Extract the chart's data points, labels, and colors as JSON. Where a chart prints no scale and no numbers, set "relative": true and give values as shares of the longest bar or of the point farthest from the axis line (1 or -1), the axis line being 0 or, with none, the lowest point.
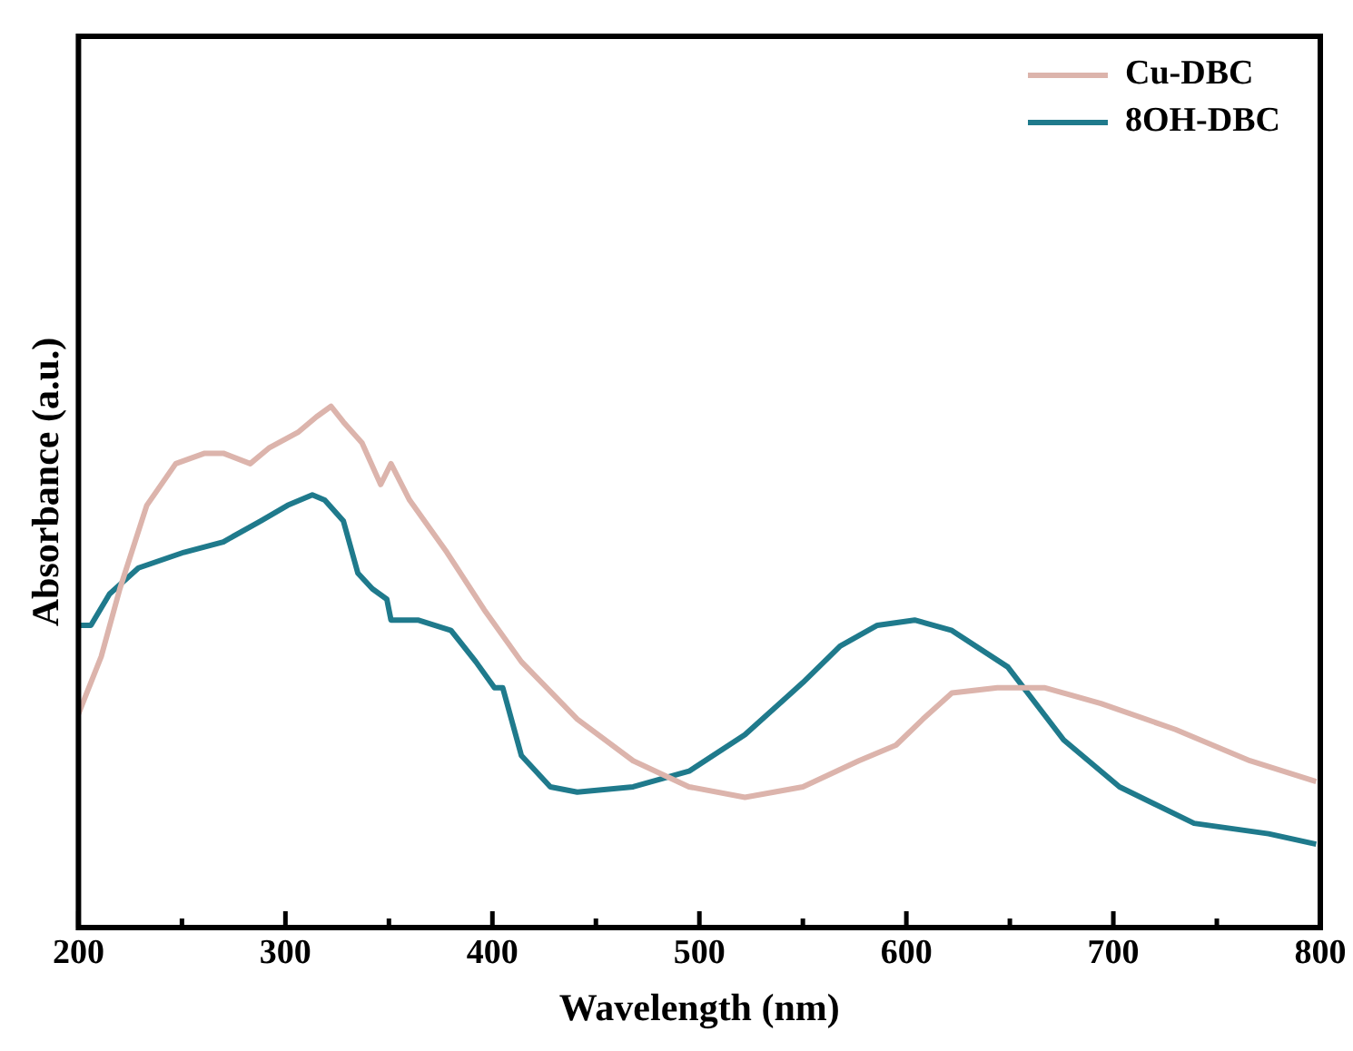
{
  "chart_data": {
    "type": "line",
    "xlabel": "Wavelength (nm)",
    "ylabel": "Absorbance (a.u.)",
    "relative": true,
    "xlim": [
      200,
      800
    ],
    "xticks": [
      200,
      {
        "value": 250,
        "label": null
      },
      300,
      {
        "value": 350,
        "label": null
      },
      400,
      {
        "value": 450,
        "label": null
      },
      500,
      {
        "value": 550,
        "label": null
      },
      600,
      {
        "value": 650,
        "label": null
      },
      700,
      {
        "value": 750,
        "label": null
      },
      800
    ],
    "legend": "top right",
    "grid": false,
    "marker": "none",
    "line_style": "solid",
    "series": [
      {
        "name": "Cu-DBC",
        "color": "#dcb4ac",
        "x": [
          200,
          206,
          211,
          220,
          233,
          247,
          261,
          270,
          283,
          292,
          306,
          315,
          322,
          328,
          337,
          346,
          351,
          360,
          378,
          396,
          414,
          441,
          468,
          495,
          522,
          550,
          577,
          595,
          608,
          622,
          644,
          667,
          694,
          730,
          766,
          798
        ],
        "values": [
          0.41,
          0.47,
          0.52,
          0.65,
          0.81,
          0.89,
          0.91,
          0.91,
          0.89,
          0.92,
          0.95,
          0.98,
          1.0,
          0.97,
          0.93,
          0.85,
          0.89,
          0.82,
          0.72,
          0.61,
          0.51,
          0.4,
          0.32,
          0.27,
          0.25,
          0.27,
          0.32,
          0.35,
          0.4,
          0.45,
          0.46,
          0.46,
          0.43,
          0.38,
          0.32,
          0.28
        ]
      },
      {
        "name": "8OH-DBC",
        "color": "#1f7a8c",
        "x": [
          200,
          206,
          215,
          229,
          251,
          270,
          288,
          301,
          313,
          319,
          328,
          335,
          342,
          349,
          351,
          364,
          380,
          392,
          401,
          405,
          414,
          428,
          441,
          468,
          495,
          522,
          550,
          568,
          586,
          604,
          622,
          649,
          676,
          703,
          739,
          775,
          798
        ],
        "values": [
          0.58,
          0.58,
          0.64,
          0.69,
          0.72,
          0.74,
          0.78,
          0.81,
          0.83,
          0.82,
          0.78,
          0.68,
          0.65,
          0.63,
          0.59,
          0.59,
          0.57,
          0.51,
          0.46,
          0.46,
          0.33,
          0.27,
          0.26,
          0.27,
          0.3,
          0.37,
          0.47,
          0.54,
          0.58,
          0.59,
          0.57,
          0.5,
          0.36,
          0.27,
          0.2,
          0.18,
          0.16
        ]
      }
    ]
  }
}
